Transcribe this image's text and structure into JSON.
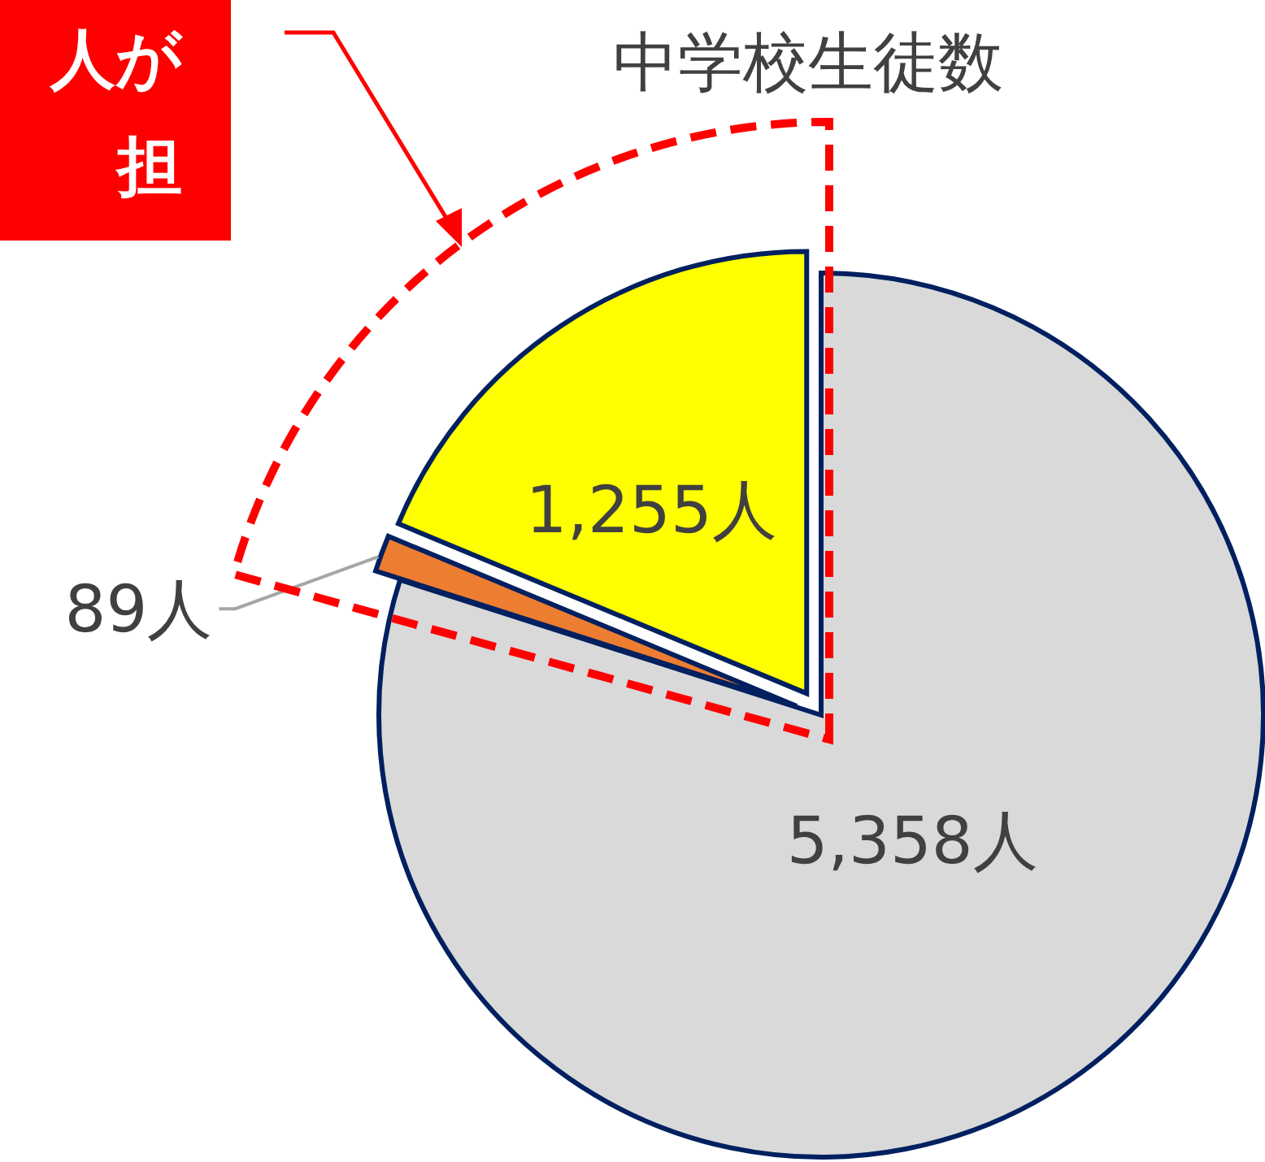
{
  "chart_data": {
    "type": "pie",
    "title": "中学校生徒数",
    "categories": [
      null,
      null,
      null
    ],
    "values": [
      1255,
      89,
      5358
    ],
    "colors": [
      "#ffff00",
      "#ed7d31",
      "#d9d9d9"
    ],
    "value_labels": [
      "1,255人",
      "89人",
      "5,358人"
    ],
    "annotations": [
      "人が",
      "担"
    ]
  }
}
